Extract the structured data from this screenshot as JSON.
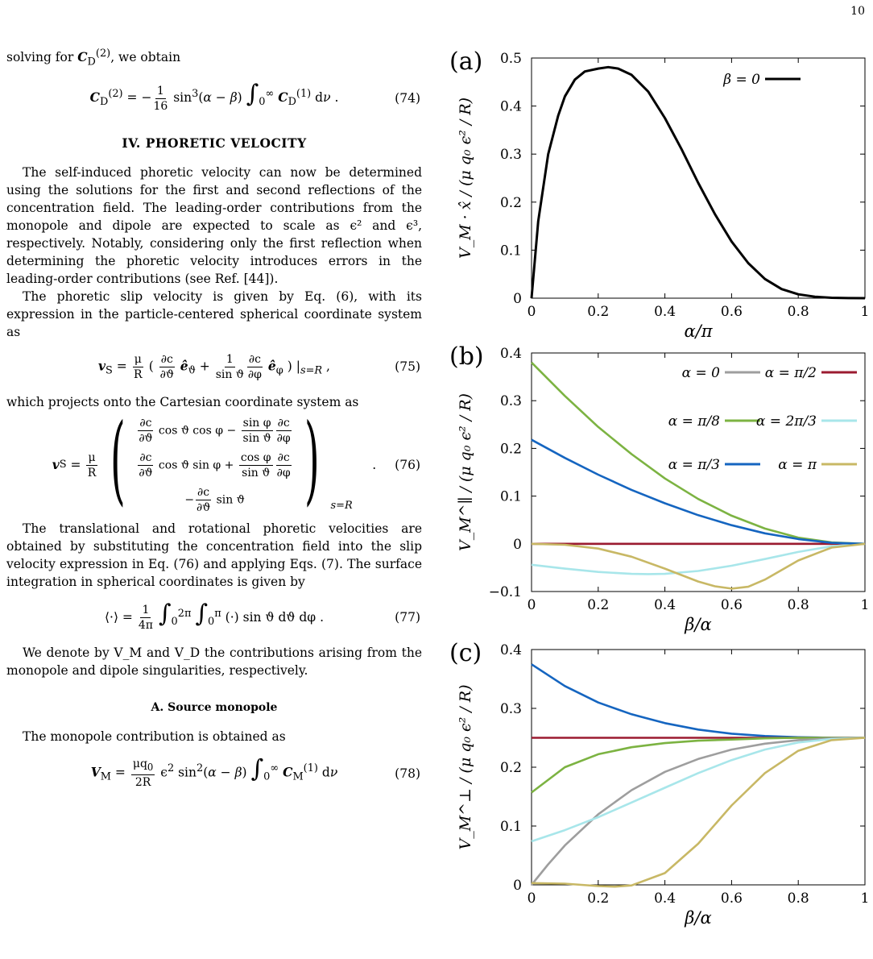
{
  "page_number": "10",
  "text": {
    "p_intro": "solving for C_D^(2), we obtain",
    "eq74": "C_D^(2) = −(1/16) sin³(α − β) ∫₀^∞ C_D^(1) dν .",
    "eq74_num": "(74)",
    "section_title": "IV.   PHORETIC VELOCITY",
    "p1": "The self-induced phoretic velocity can now be determined using the solutions for the first and second reflections of the concentration field. The leading-order contributions from the monopole and dipole are expected to scale as ϵ² and ϵ³, respectively. Notably, considering only the first reflection when determining the phoretic velocity introduces errors in the leading-order contributions (see Ref. [44]).",
    "p2": "The phoretic slip velocity is given by Eq. (6), with its expression in the particle-centered spherical coordinate system as",
    "eq75_num": "(75)",
    "p3": "which projects onto the Cartesian coordinate system as",
    "eq76_num": "(76)",
    "p4": "The translational and rotational phoretic velocities are obtained by substituting the concentration field into the slip velocity expression in Eq. (76) and applying Eqs. (7). The surface integration in spherical coordinates is given by",
    "eq77_num": "(77)",
    "p5": "We denote by V_M and V_D the contributions arising from the monopole and dipole singularities, respectively.",
    "subsection_title": "A.   Source monopole",
    "p6": "The monopole contribution is obtained as",
    "eq78_num": "(78)"
  },
  "panels": {
    "a": {
      "label": "(a)",
      "ylabel": "V_M · x̂ / (μ q₀ ϵ² / R)",
      "xlabel": "α/π",
      "yticks": [
        "0",
        "0.1",
        "0.2",
        "0.3",
        "0.4",
        "0.5"
      ],
      "xticks": [
        "0",
        "0.2",
        "0.4",
        "0.6",
        "0.8",
        "1"
      ],
      "legend": [
        "β = 0"
      ]
    },
    "b": {
      "label": "(b)",
      "ylabel": "V_M^∥ / (μ q₀ ϵ² / R)",
      "xlabel": "β/α",
      "yticks": [
        "−0.1",
        "0",
        "0.1",
        "0.2",
        "0.3",
        "0.4"
      ],
      "xticks": [
        "0",
        "0.2",
        "0.4",
        "0.6",
        "0.8",
        "1"
      ],
      "legend": [
        "α = 0",
        "α = π/2",
        "α = π/8",
        "α = 2π/3",
        "α = π/3",
        "α = π"
      ]
    },
    "c": {
      "label": "(c)",
      "ylabel": "V_M^⊥ / (μ q₀ ϵ² / R)",
      "xlabel": "β/α",
      "yticks": [
        "0",
        "0.1",
        "0.2",
        "0.3",
        "0.4"
      ],
      "xticks": [
        "0",
        "0.2",
        "0.4",
        "0.6",
        "0.8",
        "1"
      ]
    }
  },
  "chart_data": [
    {
      "type": "line",
      "panel": "a",
      "xlabel": "α/π",
      "ylabel": "V_M·x̂/(μq₀ϵ²/R)",
      "xlim": [
        0,
        1
      ],
      "ylim": [
        0,
        0.5
      ],
      "series": [
        {
          "name": "β = 0",
          "color": "#000000",
          "x": [
            0,
            0.02,
            0.05,
            0.08,
            0.1,
            0.13,
            0.16,
            0.2,
            0.23,
            0.26,
            0.3,
            0.35,
            0.4,
            0.45,
            0.5,
            0.55,
            0.6,
            0.65,
            0.7,
            0.75,
            0.8,
            0.85,
            0.9,
            0.95,
            1.0
          ],
          "y": [
            0,
            0.16,
            0.3,
            0.38,
            0.42,
            0.455,
            0.472,
            0.478,
            0.481,
            0.478,
            0.465,
            0.43,
            0.375,
            0.31,
            0.24,
            0.175,
            0.118,
            0.073,
            0.04,
            0.019,
            0.008,
            0.003,
            0.0008,
            0.0001,
            0
          ]
        }
      ]
    },
    {
      "type": "line",
      "panel": "b",
      "xlabel": "β/α",
      "xlim": [
        0,
        1
      ],
      "ylim": [
        -0.1,
        0.4
      ],
      "series": [
        {
          "name": "α = 0",
          "color": "#9e9e9e",
          "x": [
            0,
            1
          ],
          "y": [
            0,
            0
          ]
        },
        {
          "name": "α = π/2",
          "color": "#9b1b30",
          "x": [
            0,
            1
          ],
          "y": [
            0,
            0
          ]
        },
        {
          "name": "α = π/8",
          "color": "#7cb342",
          "x": [
            0,
            0.1,
            0.2,
            0.3,
            0.4,
            0.5,
            0.6,
            0.7,
            0.8,
            0.9,
            1.0
          ],
          "y": [
            0.38,
            0.31,
            0.245,
            0.188,
            0.137,
            0.094,
            0.059,
            0.032,
            0.013,
            0.003,
            0
          ]
        },
        {
          "name": "α = 2π/3",
          "color": "#a8e6ea",
          "x": [
            0,
            0.1,
            0.2,
            0.3,
            0.35,
            0.4,
            0.5,
            0.6,
            0.7,
            0.8,
            0.9,
            1.0
          ],
          "y": [
            -0.044,
            -0.052,
            -0.059,
            -0.063,
            -0.0635,
            -0.063,
            -0.057,
            -0.046,
            -0.032,
            -0.017,
            -0.005,
            0
          ]
        },
        {
          "name": "α = π/3",
          "color": "#1565c0",
          "x": [
            0,
            0.1,
            0.2,
            0.3,
            0.4,
            0.5,
            0.6,
            0.7,
            0.8,
            0.9,
            1.0
          ],
          "y": [
            0.218,
            0.18,
            0.145,
            0.113,
            0.085,
            0.06,
            0.039,
            0.022,
            0.01,
            0.002,
            0
          ]
        },
        {
          "name": "α = π",
          "color": "#c8b865",
          "x": [
            0,
            0.1,
            0.2,
            0.3,
            0.4,
            0.5,
            0.55,
            0.6,
            0.65,
            0.7,
            0.8,
            0.9,
            1.0
          ],
          "y": [
            0,
            -0.002,
            -0.01,
            -0.027,
            -0.052,
            -0.079,
            -0.089,
            -0.094,
            -0.09,
            -0.075,
            -0.035,
            -0.008,
            0
          ]
        }
      ]
    },
    {
      "type": "line",
      "panel": "c",
      "xlabel": "β/α",
      "xlim": [
        0,
        1
      ],
      "ylim": [
        0,
        0.4
      ],
      "series": [
        {
          "name": "α = π/3",
          "color": "#1565c0",
          "x": [
            0,
            0.1,
            0.2,
            0.3,
            0.4,
            0.5,
            0.6,
            0.7,
            0.8,
            0.9,
            1.0
          ],
          "y": [
            0.375,
            0.338,
            0.31,
            0.29,
            0.275,
            0.264,
            0.257,
            0.253,
            0.251,
            0.25,
            0.25
          ]
        },
        {
          "name": "α = π/2",
          "color": "#9b1b30",
          "x": [
            0,
            1
          ],
          "y": [
            0.25,
            0.25
          ]
        },
        {
          "name": "α = π/8",
          "color": "#7cb342",
          "x": [
            0,
            0.1,
            0.2,
            0.3,
            0.4,
            0.5,
            0.6,
            0.7,
            0.8,
            0.9,
            1.0
          ],
          "y": [
            0.157,
            0.2,
            0.222,
            0.234,
            0.241,
            0.245,
            0.247,
            0.249,
            0.25,
            0.25,
            0.25
          ]
        },
        {
          "name": "α = 0",
          "color": "#9e9e9e",
          "x": [
            0,
            0.05,
            0.1,
            0.2,
            0.3,
            0.4,
            0.5,
            0.6,
            0.7,
            0.8,
            0.9,
            1.0
          ],
          "y": [
            0,
            0.035,
            0.067,
            0.12,
            0.161,
            0.192,
            0.214,
            0.23,
            0.24,
            0.246,
            0.249,
            0.25
          ]
        },
        {
          "name": "α = 2π/3",
          "color": "#a8e6ea",
          "x": [
            0,
            0.1,
            0.2,
            0.3,
            0.4,
            0.5,
            0.6,
            0.7,
            0.8,
            0.9,
            1.0
          ],
          "y": [
            0.074,
            0.093,
            0.115,
            0.14,
            0.165,
            0.19,
            0.212,
            0.23,
            0.242,
            0.248,
            0.25
          ]
        },
        {
          "name": "α = π",
          "color": "#c8b865",
          "x": [
            0,
            0.1,
            0.2,
            0.25,
            0.3,
            0.4,
            0.5,
            0.6,
            0.7,
            0.8,
            0.9,
            1.0
          ],
          "y": [
            0.003,
            0.002,
            -0.002,
            -0.003,
            -0.001,
            0.02,
            0.07,
            0.135,
            0.19,
            0.228,
            0.246,
            0.25
          ]
        }
      ]
    }
  ]
}
